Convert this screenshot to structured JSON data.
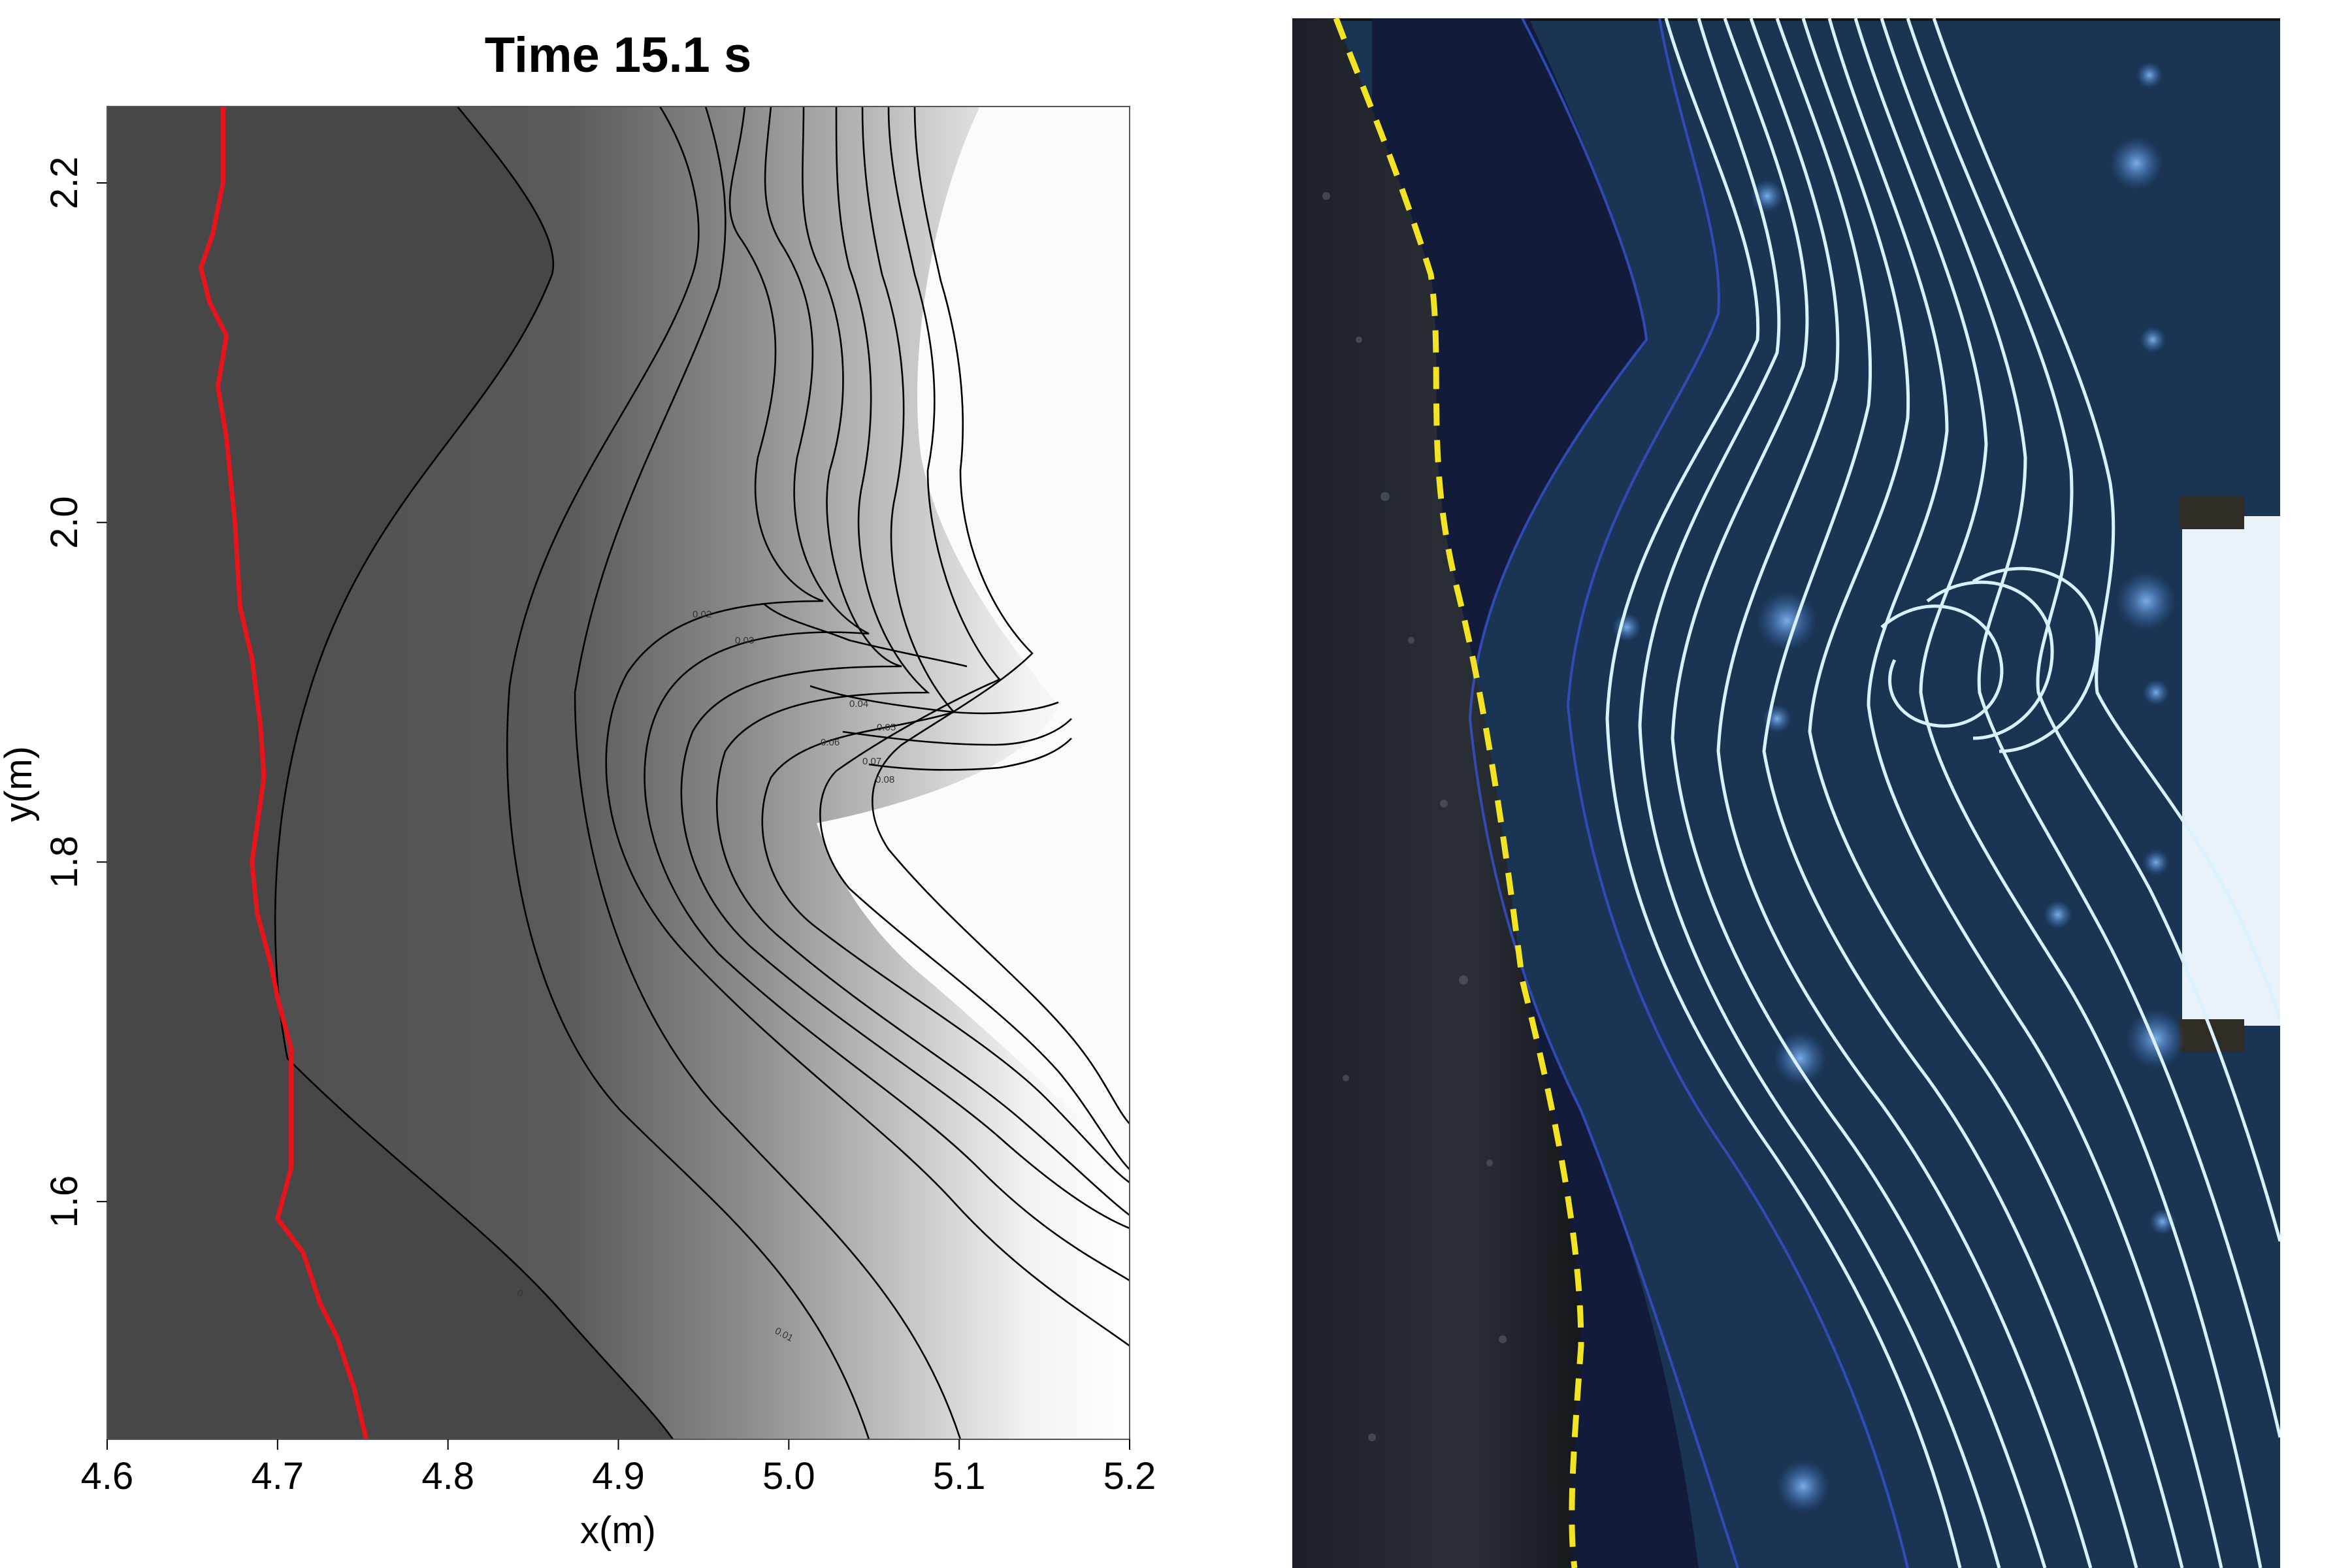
{
  "chart_data": {
    "type": "contour",
    "title": "Time 15.1 s",
    "xlabel": "x(m)",
    "ylabel": "y(m)",
    "xlim": [
      4.6,
      5.2
    ],
    "ylim": [
      1.46,
      2.245
    ],
    "x_ticks": [
      "4.6",
      "4.7",
      "4.8",
      "4.9",
      "5.0",
      "5.1",
      "5.2"
    ],
    "y_ticks": [
      "1.6",
      "1.8",
      "2.0",
      "2.2"
    ],
    "contour_labels": [
      "0",
      "0.01",
      "0.02",
      "0.03",
      "0.04",
      "0.05",
      "0.06",
      "0.07",
      "0.08"
    ],
    "grid": false,
    "colors": {
      "dry_region": "#4a4a4a",
      "shoreline": "#e8141b",
      "contour_line": "#000000",
      "photo_dashed_boundary": "#f2e424",
      "photo_lines": "#d8f2ff"
    },
    "shoreline": {
      "x": [
        4.668,
        4.668,
        4.662,
        4.655,
        4.66,
        4.67,
        4.665,
        4.67,
        4.675,
        4.678,
        4.685,
        4.69,
        4.692,
        4.685,
        4.688,
        4.696,
        4.7,
        4.708,
        4.708,
        4.7,
        4.715,
        4.725,
        4.735,
        4.745,
        4.752
      ],
      "y": [
        2.245,
        2.2,
        2.17,
        2.15,
        2.13,
        2.11,
        2.08,
        2.05,
        2.0,
        1.95,
        1.92,
        1.88,
        1.85,
        1.8,
        1.77,
        1.74,
        1.72,
        1.69,
        1.62,
        1.59,
        1.57,
        1.54,
        1.52,
        1.49,
        1.46
      ]
    }
  }
}
